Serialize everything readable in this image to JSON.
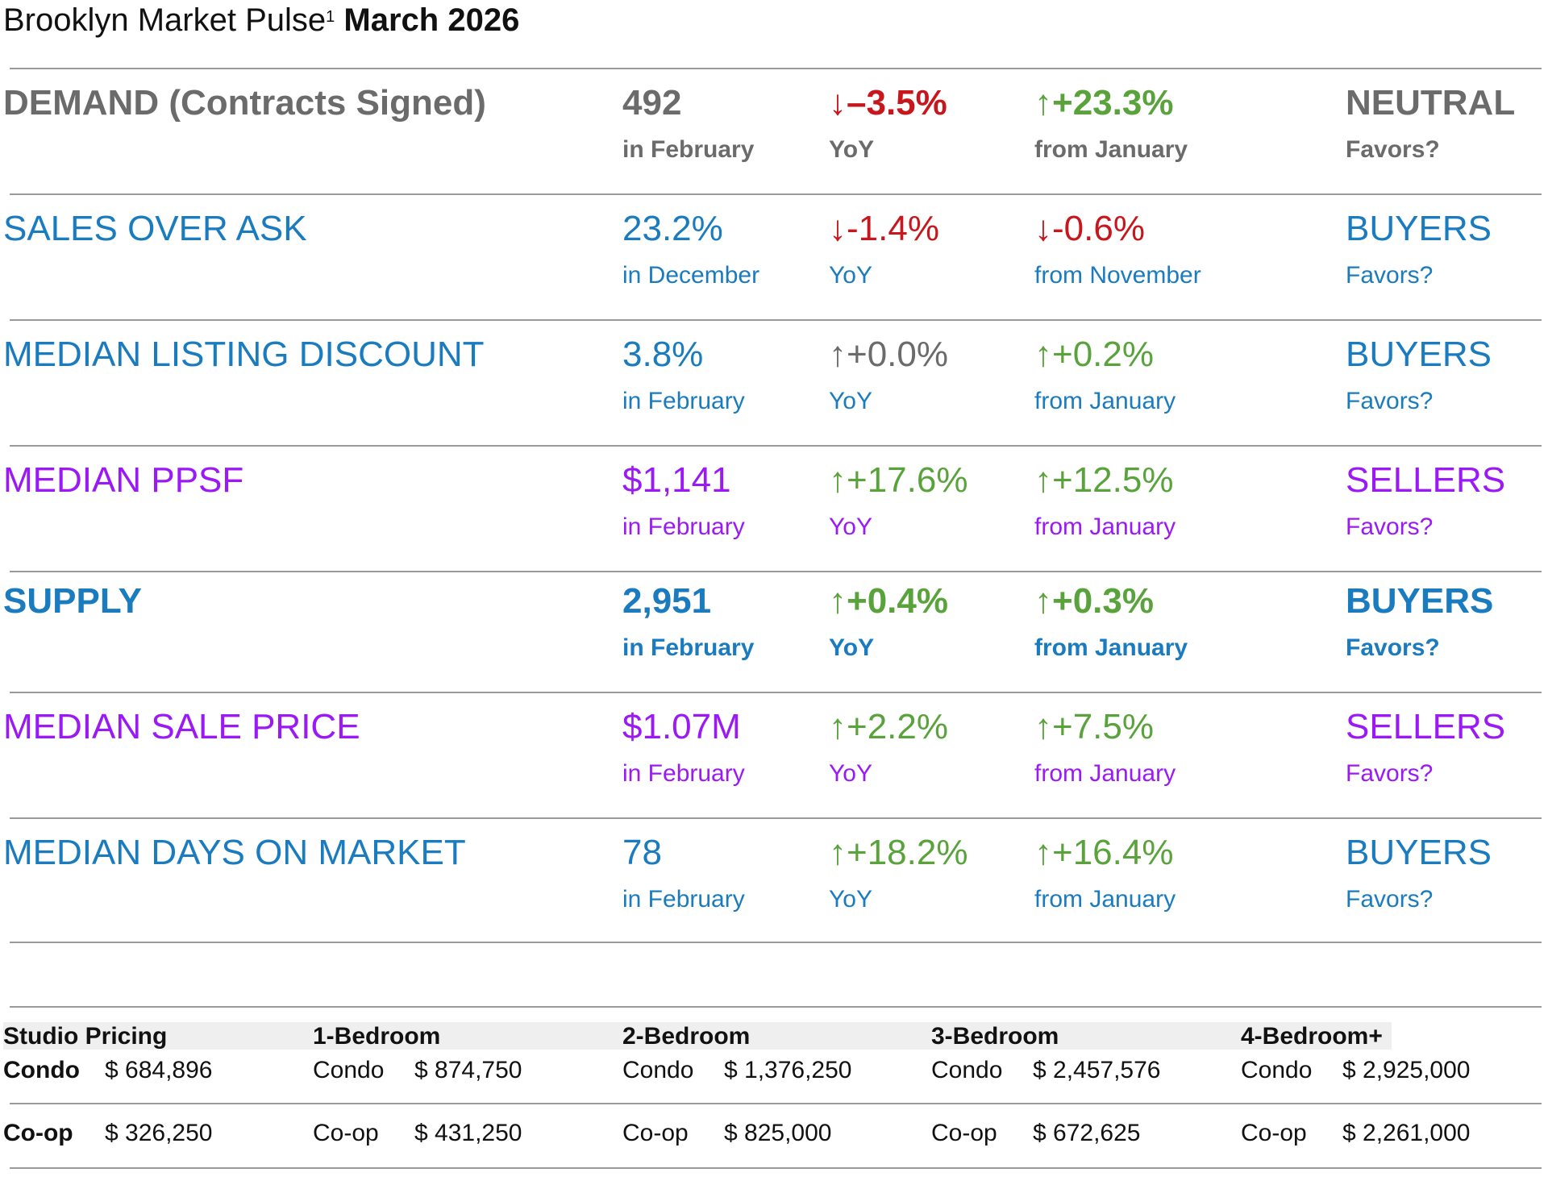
{
  "title": {
    "main": "Brooklyn Market Pulse",
    "footnote": "1",
    "date": "March 2026"
  },
  "colors": {
    "neutral": "#6b6b6b",
    "blue": "#1a7bbf",
    "purple": "#9b19f5",
    "red": "#c8161d",
    "green": "#5aa33c"
  },
  "metrics": [
    {
      "name": "DEMAND (Contracts Signed)",
      "value": "492",
      "value_sub": "in February",
      "yoy": "↓–3.5%",
      "yoy_sub": "YoY",
      "mom": "↑+23.3%",
      "mom_sub": "from January",
      "favors": "NEUTRAL",
      "favors_sub": "Favors?",
      "color": "#6b6b6b",
      "yoy_color": "#c8161d",
      "mom_color": "#5aa33c",
      "bold": true
    },
    {
      "name": "SALES OVER ASK",
      "value": "23.2%",
      "value_sub": "in December",
      "yoy": "↓-1.4%",
      "yoy_sub": "YoY",
      "mom": "↓-0.6%",
      "mom_sub": "from November",
      "favors": "BUYERS",
      "favors_sub": "Favors?",
      "color": "#1a7bbf",
      "yoy_color": "#c8161d",
      "mom_color": "#c8161d",
      "bold": false
    },
    {
      "name": "MEDIAN LISTING DISCOUNT",
      "value": "3.8%",
      "value_sub": "in February",
      "yoy": "↑+0.0%",
      "yoy_sub": "YoY",
      "mom": "↑+0.2%",
      "mom_sub": "from January",
      "favors": "BUYERS",
      "favors_sub": "Favors?",
      "color": "#1a7bbf",
      "yoy_color": "#6b6b6b",
      "mom_color": "#5aa33c",
      "bold": false
    },
    {
      "name": "MEDIAN PPSF",
      "value": "$1,141",
      "value_sub": "in February",
      "yoy": "↑+17.6%",
      "yoy_sub": "YoY",
      "mom": "↑+12.5%",
      "mom_sub": "from January",
      "favors": "SELLERS",
      "favors_sub": "Favors?",
      "color": "#9b19f5",
      "yoy_color": "#5aa33c",
      "mom_color": "#5aa33c",
      "bold": false
    },
    {
      "name": "SUPPLY",
      "value": "2,951",
      "value_sub": "in February",
      "yoy": "↑+0.4%",
      "yoy_sub": "YoY",
      "mom": "↑+0.3%",
      "mom_sub": "from January",
      "favors": "BUYERS",
      "favors_sub": "Favors?",
      "color": "#1a7bbf",
      "yoy_color": "#5aa33c",
      "mom_color": "#5aa33c",
      "bold": true
    },
    {
      "name": "MEDIAN SALE PRICE",
      "value": "$1.07M",
      "value_sub": "in February",
      "yoy": "↑+2.2%",
      "yoy_sub": "YoY",
      "mom": "↑+7.5%",
      "mom_sub": "from January",
      "favors": "SELLERS",
      "favors_sub": "Favors?",
      "color": "#9b19f5",
      "yoy_color": "#5aa33c",
      "mom_color": "#5aa33c",
      "bold": false
    },
    {
      "name": "MEDIAN DAYS ON MARKET",
      "value": "78",
      "value_sub": "in February",
      "yoy": "↑+18.2%",
      "yoy_sub": "YoY",
      "mom": "↑+16.4%",
      "mom_sub": "from January",
      "favors": "BUYERS",
      "favors_sub": "Favors?",
      "color": "#1a7bbf",
      "yoy_color": "#5aa33c",
      "mom_color": "#5aa33c",
      "bold": false
    }
  ],
  "pricing": {
    "headers": [
      "Studio Pricing",
      "1-Bedroom",
      "2-Bedroom",
      "3-Bedroom",
      "4-Bedroom+"
    ],
    "condo_label": "Condo",
    "coop_label": "Co-op",
    "condo": [
      "$ 684,896",
      "$ 874,750",
      "$ 1,376,250",
      "$ 2,457,576",
      "$ 2,925,000"
    ],
    "coop": [
      "$ 326,250",
      "$ 431,250",
      "$ 825,000",
      "$ 672,625",
      "$ 2,261,000"
    ]
  }
}
